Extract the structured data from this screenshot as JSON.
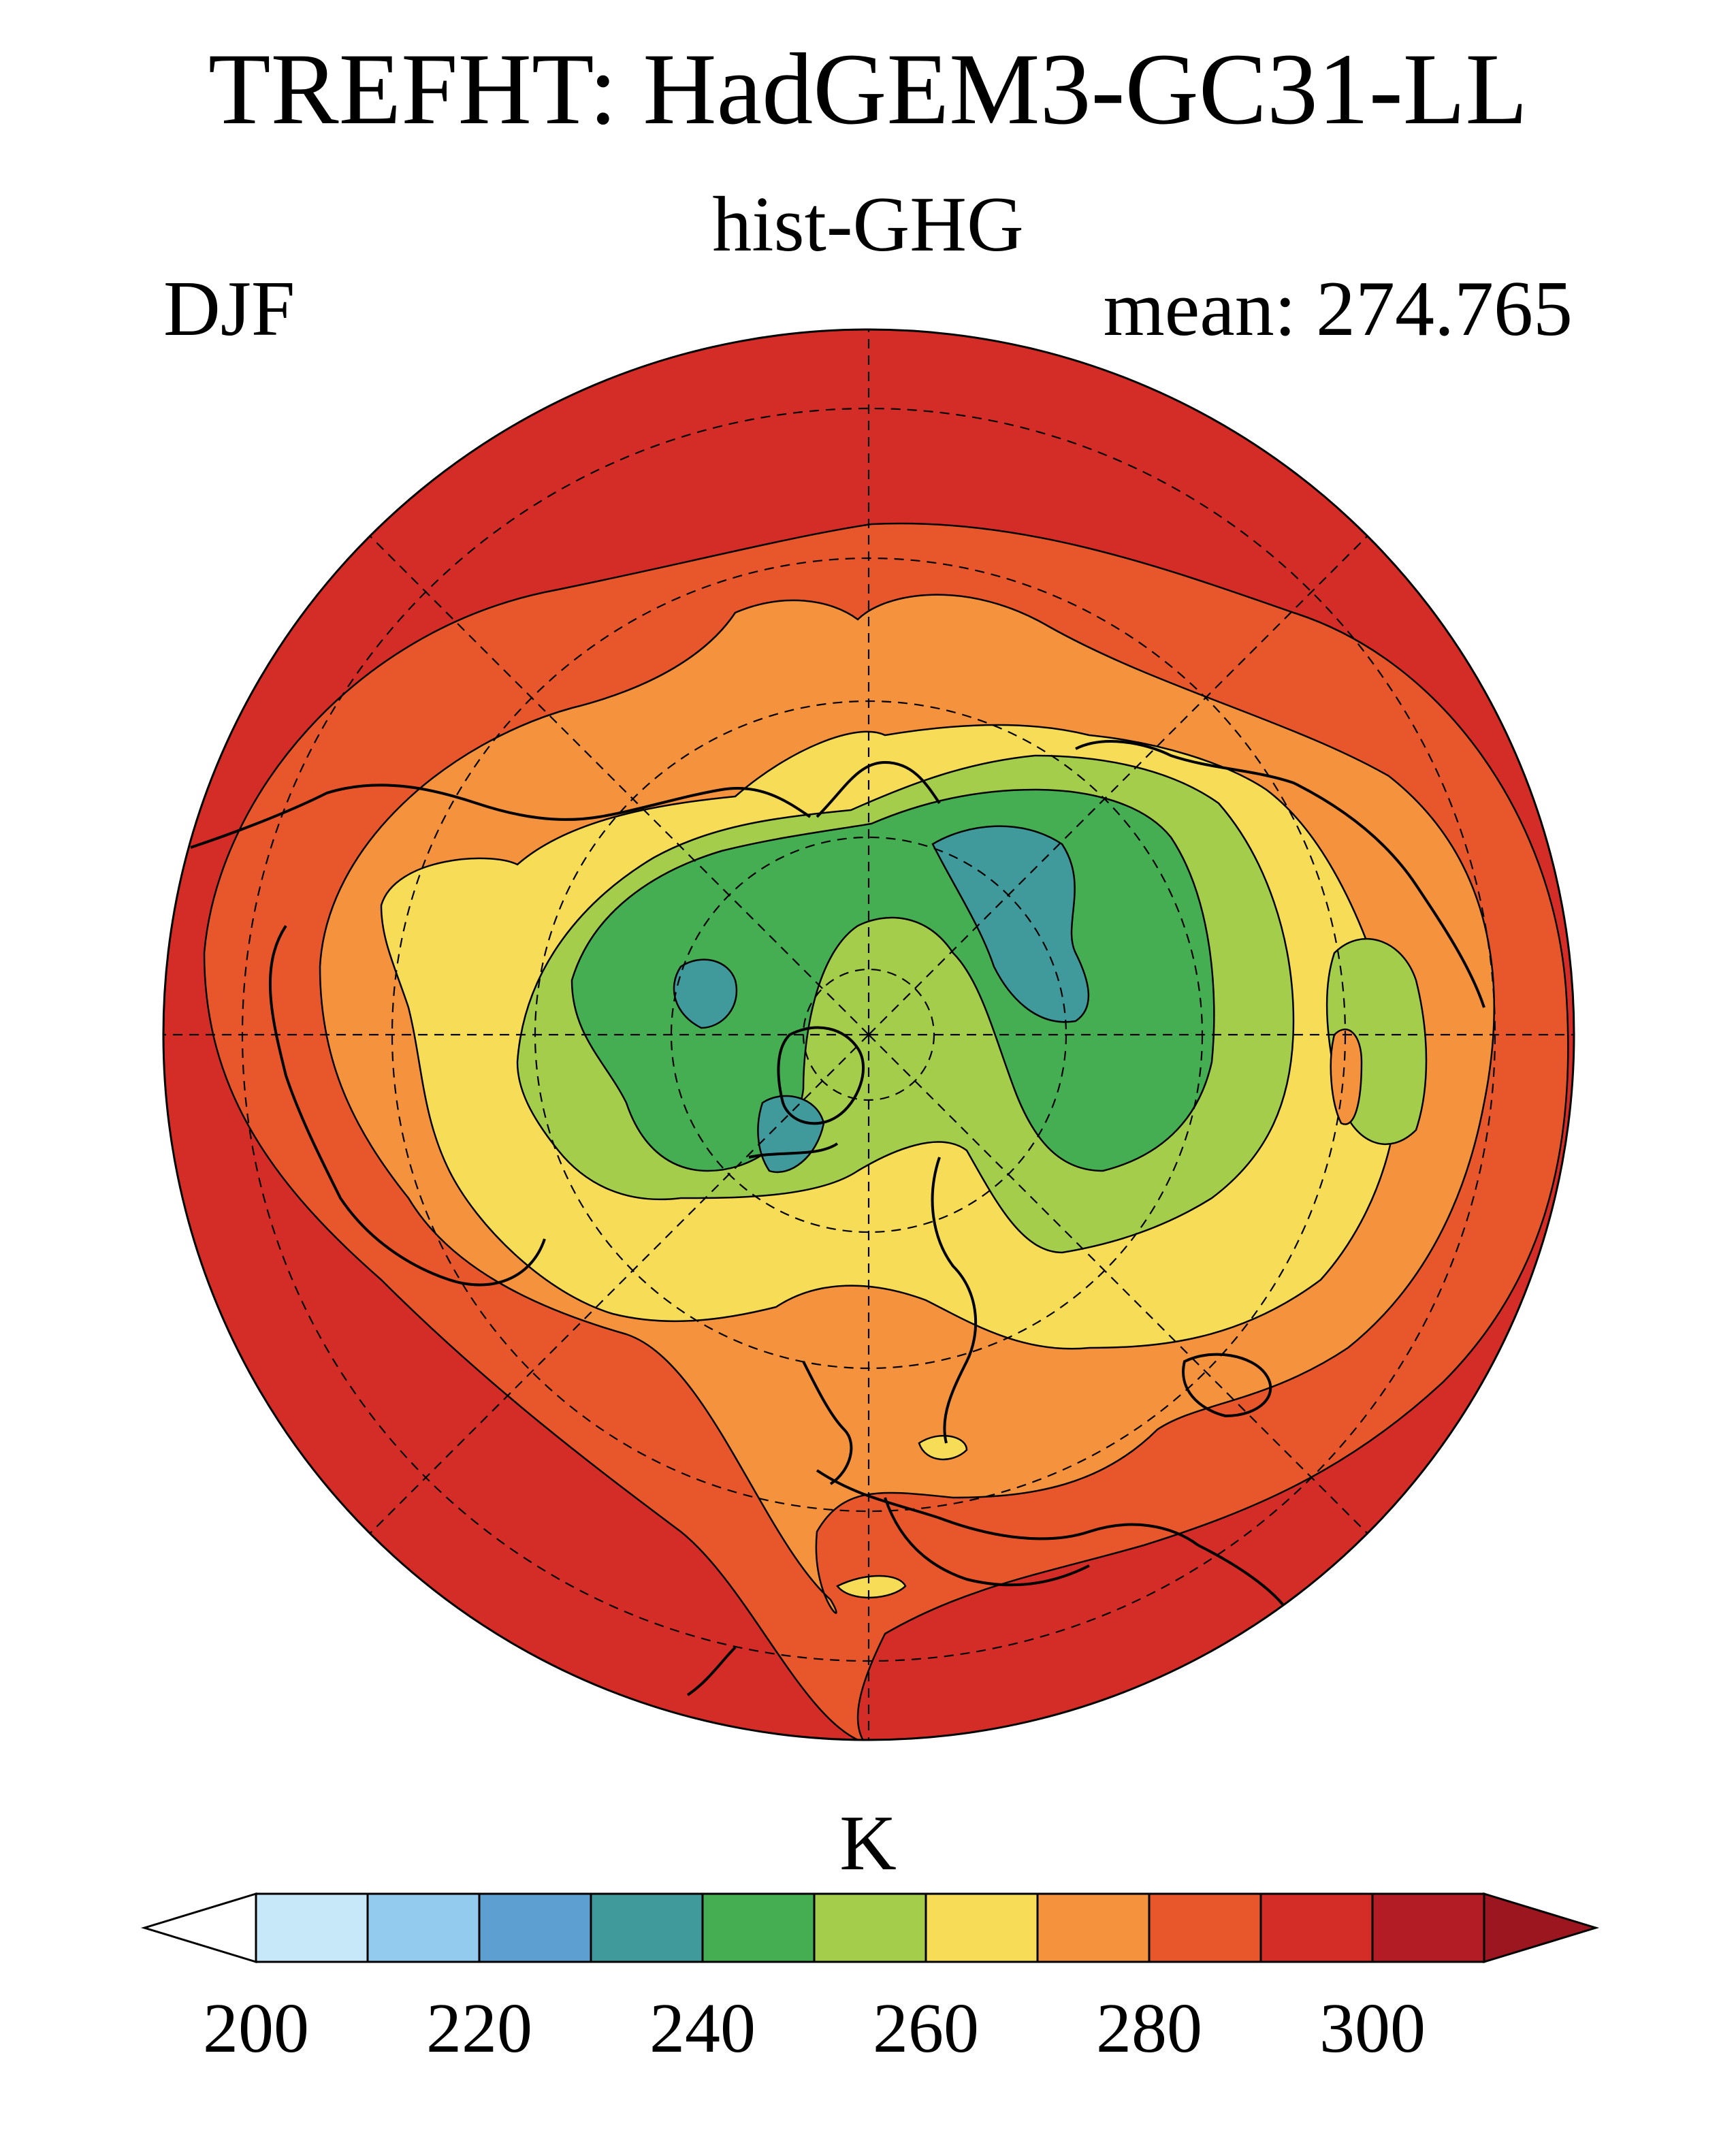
{
  "title": "TREFHT: HadGEM3-GC31-LL",
  "subtitle": "hist-GHG",
  "season": "DJF",
  "mean_label": "mean: 274.765",
  "map": {
    "projection": "north polar stereographic",
    "variable": "TREFHT",
    "units": "K"
  },
  "colorbar": {
    "units": "K",
    "levels": [
      200,
      210,
      220,
      230,
      240,
      250,
      260,
      270,
      280,
      290,
      300,
      310
    ],
    "tick_labels": [
      "200",
      "220",
      "240",
      "260",
      "280",
      "300"
    ],
    "tick_values": [
      200,
      220,
      240,
      260,
      280,
      300
    ],
    "under_color": "#ffffff",
    "over_color": "#9c1620",
    "colors": [
      "#c6e8f8",
      "#92cbee",
      "#5e9fd2",
      "#40999a",
      "#46ae52",
      "#a4cd4c",
      "#f7dd57",
      "#f4923d",
      "#e8572b",
      "#d42d27",
      "#b31c24"
    ]
  }
}
